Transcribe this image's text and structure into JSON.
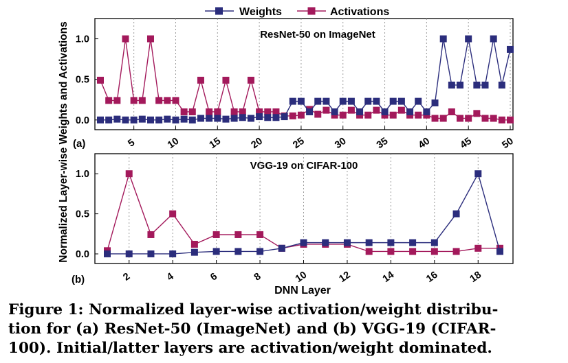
{
  "legend": {
    "weights": "Weights",
    "activations": "Activations"
  },
  "colors": {
    "weights": "#2b2d7c",
    "activations": "#a3195b",
    "grid": "#9a9a9a"
  },
  "shared_ylabel": "Normalized Layer-wise Weights and Activations",
  "shared_xlabel": "DNN Layer",
  "caption": {
    "line1": "Figure 1: Normalized layer-wise activation/weight distribu-",
    "line2": "tion for (a) ResNet-50 (ImageNet) and (b) VGG-19 (CIFAR-",
    "line3": "100). Initial/latter layers are activation/weight dominated."
  },
  "chart_data": [
    {
      "type": "line",
      "panel_label": "(a)",
      "title": "ResNet-50 on ImageNet",
      "xlabel": "",
      "ylabel": "Normalized Layer-wise Weights and Activations",
      "xlim": [
        0.5,
        50.5
      ],
      "ylim": [
        -0.12,
        1.25
      ],
      "xticks": [
        5,
        10,
        15,
        20,
        25,
        30,
        35,
        40,
        45,
        50
      ],
      "yticks": [
        0.0,
        0.5,
        1.0
      ],
      "ytick_labels": [
        "0.0",
        "0.5",
        "1.0"
      ],
      "x": [
        1,
        2,
        3,
        4,
        5,
        6,
        7,
        8,
        9,
        10,
        11,
        12,
        13,
        14,
        15,
        16,
        17,
        18,
        19,
        20,
        21,
        22,
        23,
        24,
        25,
        26,
        27,
        28,
        29,
        30,
        31,
        32,
        33,
        34,
        35,
        36,
        37,
        38,
        39,
        40,
        41,
        42,
        43,
        44,
        45,
        46,
        47,
        48,
        49,
        50
      ],
      "series": [
        {
          "name": "Weights",
          "marker": "square",
          "values": [
            0.0,
            0.0,
            0.01,
            0.0,
            0.0,
            0.01,
            0.0,
            0.0,
            0.01,
            0.0,
            0.01,
            0.0,
            0.02,
            0.02,
            0.02,
            0.01,
            0.02,
            0.03,
            0.02,
            0.04,
            0.03,
            0.03,
            0.04,
            0.23,
            0.23,
            0.1,
            0.23,
            0.23,
            0.1,
            0.23,
            0.23,
            0.1,
            0.23,
            0.23,
            0.1,
            0.23,
            0.23,
            0.1,
            0.23,
            0.1,
            0.21,
            1.0,
            0.43,
            0.43,
            1.0,
            0.43,
            0.43,
            1.0,
            0.43,
            0.87
          ]
        },
        {
          "name": "Activations",
          "marker": "square",
          "values": [
            0.49,
            0.24,
            0.24,
            1.0,
            0.24,
            0.24,
            1.0,
            0.24,
            0.24,
            0.24,
            0.1,
            0.1,
            0.49,
            0.1,
            0.1,
            0.49,
            0.1,
            0.1,
            0.49,
            0.1,
            0.1,
            0.1,
            0.05,
            0.05,
            0.06,
            0.13,
            0.07,
            0.12,
            0.06,
            0.06,
            0.12,
            0.06,
            0.06,
            0.12,
            0.06,
            0.06,
            0.12,
            0.06,
            0.06,
            0.06,
            0.02,
            0.02,
            0.1,
            0.02,
            0.02,
            0.08,
            0.02,
            0.02,
            0.0,
            0.0
          ]
        }
      ]
    },
    {
      "type": "line",
      "panel_label": "(b)",
      "title": "VGG-19 on CIFAR-100",
      "xlabel": "DNN Layer",
      "ylabel": "Normalized Layer-wise Weights and Activations",
      "xlim": [
        0.5,
        19.5
      ],
      "ylim": [
        -0.12,
        1.25
      ],
      "xticks": [
        2,
        4,
        6,
        8,
        10,
        12,
        14,
        16,
        18
      ],
      "yticks": [
        0.0,
        0.5,
        1.0
      ],
      "ytick_labels": [
        "0.0",
        "0.5",
        "1.0"
      ],
      "x": [
        1,
        2,
        3,
        4,
        5,
        6,
        7,
        8,
        9,
        10,
        11,
        12,
        13,
        14,
        15,
        16,
        17,
        18,
        19
      ],
      "series": [
        {
          "name": "Weights",
          "marker": "square",
          "values": [
            0.0,
            0.0,
            0.0,
            0.0,
            0.02,
            0.03,
            0.03,
            0.03,
            0.07,
            0.14,
            0.14,
            0.14,
            0.14,
            0.14,
            0.14,
            0.14,
            0.5,
            1.0,
            0.03
          ]
        },
        {
          "name": "Activations",
          "marker": "square",
          "values": [
            0.04,
            1.0,
            0.24,
            0.5,
            0.12,
            0.24,
            0.24,
            0.24,
            0.07,
            0.12,
            0.12,
            0.12,
            0.03,
            0.03,
            0.03,
            0.03,
            0.03,
            0.07,
            0.07
          ]
        }
      ]
    }
  ]
}
